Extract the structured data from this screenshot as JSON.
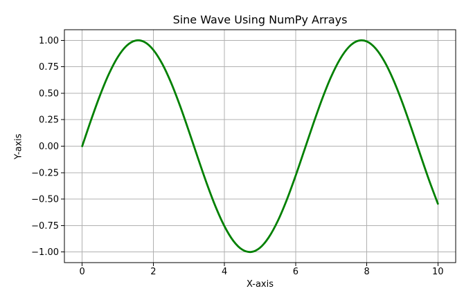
{
  "chart_data": {
    "type": "line",
    "title": "Sine Wave Using NumPy Arrays",
    "xlabel": "X-axis",
    "ylabel": "Y-axis",
    "xlim": [
      -0.5,
      10.5
    ],
    "ylim": [
      -1.1,
      1.1
    ],
    "grid": true,
    "legend": "none",
    "xticks": {
      "values": [
        0,
        2,
        4,
        6,
        8,
        10
      ],
      "labels": [
        "0",
        "2",
        "4",
        "6",
        "8",
        "10"
      ]
    },
    "yticks": {
      "values": [
        -1.0,
        -0.75,
        -0.5,
        -0.25,
        0.0,
        0.25,
        0.5,
        0.75,
        1.0
      ],
      "labels": [
        "−1.00",
        "−0.75",
        "−0.50",
        "−0.25",
        "0.00",
        "0.25",
        "0.50",
        "0.75",
        "1.00"
      ]
    },
    "series": [
      {
        "x": [
          0,
          0.25,
          0.5,
          0.75,
          1,
          1.25,
          1.5,
          1.75,
          2,
          2.25,
          2.5,
          2.75,
          3,
          3.25,
          3.5,
          3.75,
          4,
          4.25,
          4.5,
          4.75,
          5,
          5.25,
          5.5,
          5.75,
          6,
          6.25,
          6.5,
          6.75,
          7,
          7.25,
          7.5,
          7.75,
          8,
          8.25,
          8.5,
          8.75,
          9,
          9.25,
          9.5,
          9.75,
          10
        ],
        "y": [
          0,
          0.2474,
          0.4794,
          0.6816,
          0.8415,
          0.949,
          0.9975,
          0.9839,
          0.9093,
          0.7781,
          0.5985,
          0.3817,
          0.1411,
          -0.1082,
          -0.3508,
          -0.5716,
          -0.7568,
          -0.895,
          -0.9775,
          -0.9993,
          -0.9589,
          -0.8589,
          -0.7055,
          -0.5083,
          -0.2794,
          -0.0332,
          0.2151,
          0.45,
          0.657,
          0.8231,
          0.938,
          0.9946,
          0.9894,
          0.9226,
          0.7985,
          0.6247,
          0.4121,
          0.1739,
          -0.0751,
          -0.3195,
          -0.544
        ]
      }
    ],
    "colors": {
      "line": "#008000",
      "grid": "#b0b0b0",
      "spine": "#000000",
      "background": "#ffffff",
      "text": "#000000"
    },
    "line_width": 2.8
  }
}
